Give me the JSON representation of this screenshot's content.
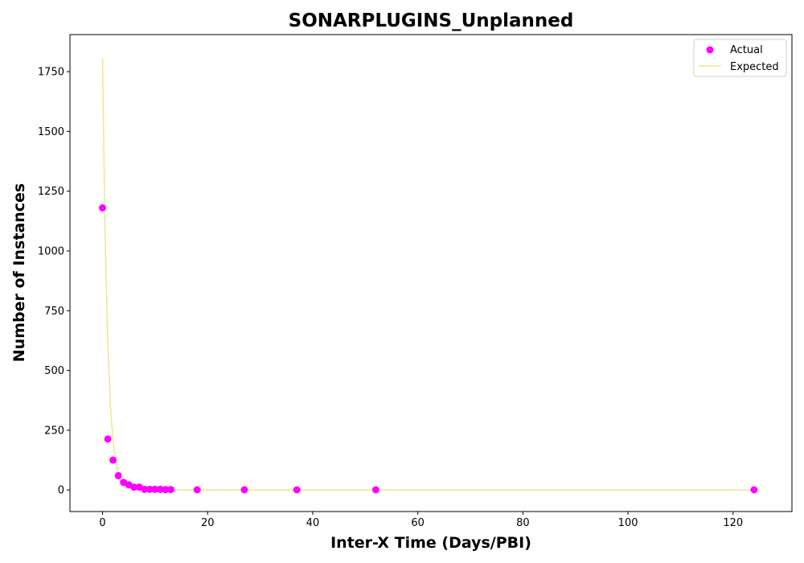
{
  "chart_data": {
    "type": "scatter",
    "title": "SONARPLUGINS_Unplanned",
    "xlabel": "Inter-X Time (Days/PBI)",
    "ylabel": "Number of Instances",
    "xlim": [
      -6.2,
      131.2
    ],
    "ylim": [
      -90,
      1905
    ],
    "x_ticks": [
      0,
      20,
      40,
      60,
      80,
      100,
      120
    ],
    "y_ticks": [
      0,
      250,
      500,
      750,
      1000,
      1250,
      1500,
      1750
    ],
    "grid": false,
    "legend_position": "top-right",
    "series": [
      {
        "name": "Actual",
        "kind": "scatter",
        "color": "#ff00ff",
        "points": [
          [
            0,
            1180
          ],
          [
            1,
            213
          ],
          [
            2,
            125
          ],
          [
            3,
            60
          ],
          [
            4,
            32
          ],
          [
            5,
            22
          ],
          [
            6,
            12
          ],
          [
            7,
            12
          ],
          [
            8,
            3
          ],
          [
            9,
            3
          ],
          [
            10,
            3
          ],
          [
            11,
            3
          ],
          [
            12,
            2
          ],
          [
            13,
            2
          ],
          [
            18,
            1
          ],
          [
            27,
            1
          ],
          [
            37,
            1
          ],
          [
            52,
            1
          ],
          [
            124,
            1
          ]
        ]
      },
      {
        "name": "Expected",
        "kind": "line",
        "color": "#f0e68c",
        "points": [
          [
            0,
            1805
          ],
          [
            0.5,
            1050
          ],
          [
            1,
            610
          ],
          [
            1.5,
            355
          ],
          [
            2,
            205
          ],
          [
            2.5,
            120
          ],
          [
            3,
            70
          ],
          [
            3.5,
            40
          ],
          [
            4,
            23
          ],
          [
            5,
            8
          ],
          [
            6,
            3
          ],
          [
            7,
            1
          ],
          [
            8,
            0.4
          ],
          [
            10,
            0
          ],
          [
            20,
            0
          ],
          [
            40,
            0
          ],
          [
            60,
            0
          ],
          [
            80,
            0
          ],
          [
            100,
            0
          ],
          [
            124,
            0
          ]
        ]
      }
    ]
  }
}
